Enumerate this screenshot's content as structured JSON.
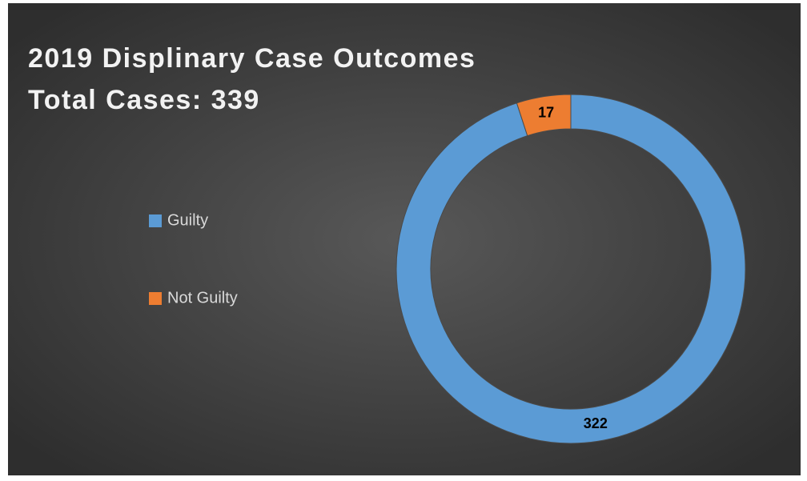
{
  "chart_data": {
    "type": "donut",
    "title": "2019 Displinary Case Outcomes",
    "subtitle": "Total Cases: 339",
    "categories": [
      "Guilty",
      "Not Guilty"
    ],
    "values": [
      322,
      17
    ],
    "colors": [
      "#5b9bd5",
      "#ed7d31"
    ],
    "legend": "left"
  }
}
